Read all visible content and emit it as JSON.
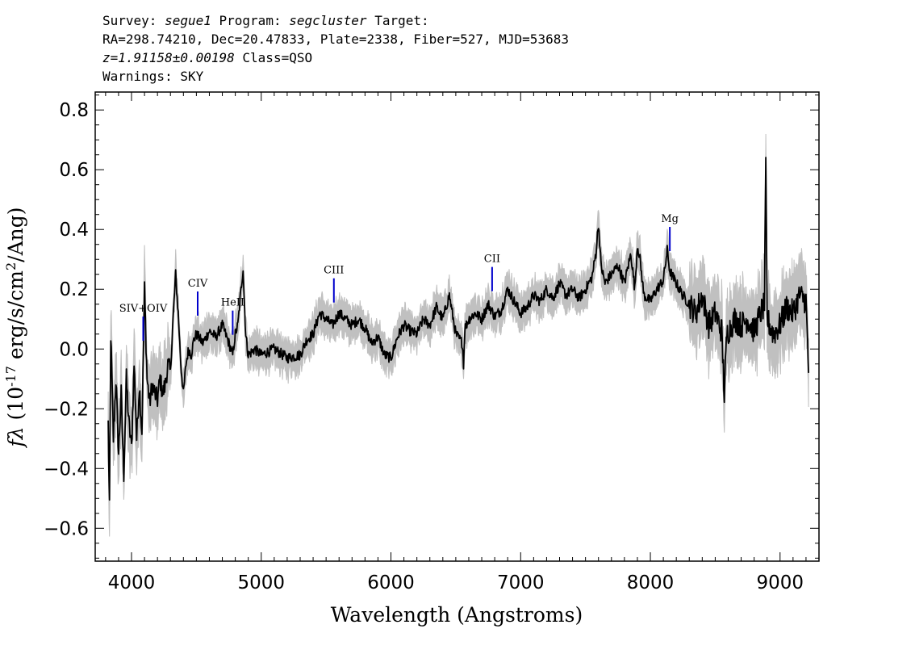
{
  "header": {
    "survey_label": "Survey:",
    "survey": "segue1",
    "program_label": "Program:",
    "program": "segcluster",
    "target_label": "Target:",
    "line2": "RA=298.74210, Dec=20.47833, Plate=2338, Fiber=527, MJD=53683",
    "redshift": "z=1.91158±0.00198",
    "class_text": "Class=QSO",
    "warnings": "Warnings: SKY"
  },
  "chart_data": {
    "type": "line",
    "xlabel": "Wavelength (Angstroms)",
    "ylabel": "f_λ (10^-17 erg/s/cm^2/Ang)",
    "xlim": [
      3720,
      9300
    ],
    "ylim": [
      -0.71,
      0.86
    ],
    "x_ticks": [
      4000,
      5000,
      6000,
      7000,
      8000,
      9000
    ],
    "y_ticks": [
      -0.6,
      -0.4,
      -0.2,
      0.0,
      0.2,
      0.4,
      0.6,
      0.8
    ],
    "y_tick_labels": [
      "−0.6",
      "−0.4",
      "−0.2",
      "0.0",
      "0.2",
      "0.4",
      "0.6",
      "0.8"
    ],
    "colors": {
      "flux": "#000000",
      "error_band": "#c0c0c0",
      "line_markers": "#0000cc"
    },
    "series": [
      {
        "x": [
          3820,
          3830,
          3840,
          3860,
          3880,
          3900,
          3920,
          3940,
          3960,
          3980,
          4000,
          4020,
          4040,
          4060,
          4080,
          4100,
          4120,
          4140,
          4160,
          4180,
          4200,
          4220,
          4240,
          4260,
          4280,
          4300,
          4320,
          4340,
          4360,
          4380,
          4400,
          4420,
          4440,
          4460,
          4480,
          4500,
          4550,
          4600,
          4650,
          4700,
          4750,
          4780,
          4800,
          4820,
          4840,
          4860,
          4880,
          4900,
          4950,
          5000,
          5100,
          5200,
          5300,
          5350,
          5400,
          5450,
          5500,
          5550,
          5600,
          5650,
          5700,
          5750,
          5800,
          5850,
          5900,
          5950,
          6000,
          6050,
          6100,
          6150,
          6200,
          6250,
          6300,
          6350,
          6400,
          6450,
          6500,
          6550,
          6560,
          6570,
          6600,
          6650,
          6700,
          6750,
          6800,
          6850,
          6900,
          6950,
          7000,
          7050,
          7100,
          7150,
          7200,
          7250,
          7300,
          7350,
          7400,
          7450,
          7500,
          7550,
          7580,
          7600,
          7620,
          7650,
          7700,
          7750,
          7800,
          7850,
          7880,
          7900,
          7920,
          7950,
          8000,
          8050,
          8100,
          8130,
          8150,
          8200,
          8250,
          8300,
          8350,
          8400,
          8450,
          8500,
          8550,
          8570,
          8590,
          8650,
          8700,
          8750,
          8800,
          8850,
          8880,
          8890,
          8900,
          8920,
          8950,
          9000,
          9050,
          9100,
          9150,
          9200,
          9220
        ],
        "y": [
          -0.25,
          -0.54,
          0.05,
          -0.3,
          -0.1,
          -0.35,
          -0.15,
          -0.42,
          -0.1,
          -0.25,
          -0.33,
          -0.05,
          -0.3,
          -0.12,
          -0.28,
          0.2,
          -0.1,
          -0.18,
          -0.12,
          -0.15,
          -0.17,
          -0.1,
          -0.15,
          -0.12,
          -0.05,
          -0.08,
          0.1,
          0.25,
          0.12,
          -0.05,
          -0.15,
          -0.05,
          0.0,
          -0.02,
          0.03,
          0.05,
          0.02,
          0.06,
          0.04,
          0.08,
          0.02,
          -0.02,
          0.05,
          0.08,
          0.18,
          0.27,
          0.05,
          -0.02,
          0.0,
          -0.02,
          0.0,
          -0.03,
          -0.02,
          0.03,
          0.05,
          0.12,
          0.1,
          0.08,
          0.12,
          0.1,
          0.08,
          0.1,
          0.07,
          0.02,
          0.04,
          -0.02,
          -0.03,
          0.04,
          0.08,
          0.06,
          0.05,
          0.1,
          0.08,
          0.14,
          0.1,
          0.18,
          0.05,
          0.02,
          -0.05,
          0.07,
          0.1,
          0.12,
          0.1,
          0.15,
          0.11,
          0.13,
          0.2,
          0.16,
          0.12,
          0.14,
          0.18,
          0.16,
          0.2,
          0.17,
          0.22,
          0.18,
          0.2,
          0.17,
          0.2,
          0.24,
          0.32,
          0.42,
          0.28,
          0.22,
          0.25,
          0.28,
          0.22,
          0.32,
          0.2,
          0.35,
          0.3,
          0.18,
          0.16,
          0.2,
          0.23,
          0.33,
          0.26,
          0.22,
          0.18,
          0.15,
          0.12,
          0.18,
          0.08,
          0.12,
          0.06,
          -0.15,
          0.05,
          0.1,
          0.08,
          0.1,
          0.06,
          0.12,
          0.15,
          0.62,
          0.1,
          0.08,
          0.05,
          0.08,
          0.14,
          0.12,
          0.18,
          0.16,
          -0.08
        ]
      }
    ],
    "emission_lines": [
      {
        "name": "SIV+OIV",
        "wavelength": 4090
      },
      {
        "name": "CIV",
        "wavelength": 4510
      },
      {
        "name": "HeII",
        "wavelength": 4780
      },
      {
        "name": "CIII",
        "wavelength": 5560
      },
      {
        "name": "CII",
        "wavelength": 6780
      },
      {
        "name": "Mg",
        "wavelength": 8150
      }
    ]
  }
}
